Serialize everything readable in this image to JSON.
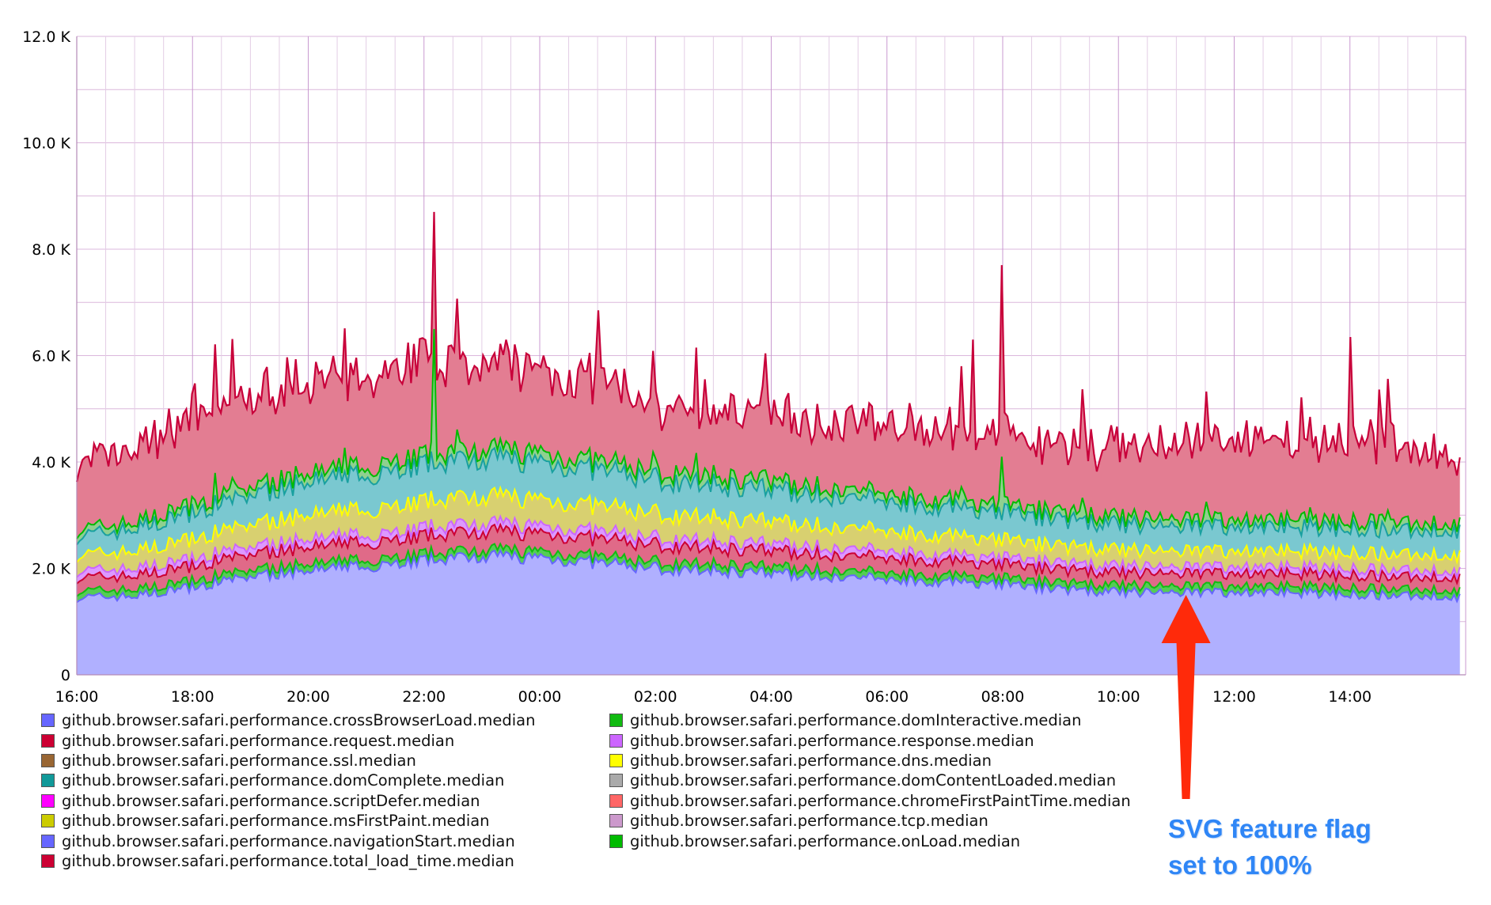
{
  "chart_data": {
    "type": "area",
    "stacked": true,
    "x_ticks": [
      "16:00",
      "18:00",
      "20:00",
      "22:00",
      "00:00",
      "02:00",
      "04:00",
      "06:00",
      "08:00",
      "10:00",
      "12:00",
      "14:00"
    ],
    "y_ticks": [
      "0",
      "2.0 K",
      "4.0 K",
      "6.0 K",
      "8.0 K",
      "10.0 K",
      "12.0 K"
    ],
    "ylim": [
      0,
      12000
    ],
    "x_range_hours": [
      16,
      39.9
    ],
    "grid": true,
    "x": [
      "16:00",
      "17:00",
      "18:00",
      "19:00",
      "20:00",
      "21:00",
      "22:00",
      "23:00",
      "00:00",
      "01:00",
      "02:00",
      "03:00",
      "04:00",
      "05:00",
      "06:00",
      "07:00",
      "08:00",
      "09:00",
      "10:00",
      "11:00",
      "12:00",
      "13:00",
      "14:00",
      "15:00",
      "15:50"
    ],
    "series": [
      {
        "name": "github.browser.safari.performance.crossBrowserLoad.median",
        "color": "#6666ff",
        "fill": "#b0b0ff",
        "values": [
          1450,
          1480,
          1650,
          1850,
          1950,
          2050,
          2150,
          2250,
          2200,
          2100,
          2000,
          1950,
          1900,
          1850,
          1800,
          1750,
          1700,
          1600,
          1550,
          1550,
          1550,
          1550,
          1500,
          1500,
          1450
        ]
      },
      {
        "name": "github.browser.safari.performance.domInteractive.median",
        "color": "#11bb11",
        "fill": "#55cc55",
        "values": [
          120,
          120,
          120,
          120,
          120,
          120,
          120,
          120,
          120,
          120,
          120,
          120,
          120,
          120,
          120,
          120,
          120,
          120,
          120,
          120,
          120,
          120,
          120,
          120,
          120
        ]
      },
      {
        "name": "github.browser.safari.performance.request.median",
        "color": "#cc0033",
        "fill": "#e06a88",
        "values": [
          250,
          260,
          280,
          300,
          320,
          330,
          340,
          350,
          340,
          330,
          320,
          310,
          300,
          290,
          280,
          270,
          260,
          250,
          240,
          240,
          240,
          240,
          240,
          240,
          240
        ]
      },
      {
        "name": "github.browser.safari.performance.response.median",
        "color": "#cc66ff",
        "fill": "#dd99ff",
        "values": [
          130,
          130,
          130,
          140,
          140,
          140,
          150,
          150,
          140,
          140,
          130,
          130,
          130,
          130,
          130,
          120,
          120,
          120,
          120,
          120,
          120,
          120,
          120,
          120,
          120
        ]
      },
      {
        "name": "github.browser.safari.performance.dns.median",
        "color": "#ffff00",
        "fill": "#d8d070",
        "values": [
          300,
          330,
          380,
          420,
          460,
          480,
          500,
          520,
          500,
          480,
          460,
          440,
          420,
          400,
          380,
          360,
          340,
          320,
          310,
          300,
          300,
          300,
          300,
          300,
          300
        ]
      },
      {
        "name": "github.browser.safari.performance.domComplete.median",
        "color": "#19a0a0",
        "fill": "#7ac8d0",
        "values": [
          350,
          420,
          500,
          560,
          620,
          660,
          700,
          720,
          700,
          680,
          650,
          620,
          600,
          580,
          560,
          540,
          520,
          500,
          480,
          470,
          460,
          460,
          460,
          460,
          460
        ]
      },
      {
        "name": "github.browser.safari.performance.onLoad.median",
        "color": "#00bb00",
        "fill": "#8fd08f",
        "values": [
          120,
          120,
          130,
          140,
          150,
          160,
          170,
          170,
          170,
          160,
          150,
          150,
          150,
          140,
          140,
          140,
          130,
          130,
          130,
          130,
          130,
          130,
          130,
          130,
          130
        ]
      },
      {
        "name": "github.browser.safari.performance.total_load_time.median",
        "color": "#c8003a",
        "fill": "#e37d92",
        "values": [
          1250,
          1350,
          1650,
          1700,
          1700,
          1600,
          1800,
          1650,
          1550,
          1450,
          1250,
          1250,
          1300,
          1250,
          1300,
          1300,
          1350,
          1200,
          1350,
          1400,
          1450,
          1450,
          1500,
          1500,
          1250
        ]
      }
    ],
    "spikes": [
      {
        "x": "22:10",
        "total_load_time": 8700,
        "onLoad": 6500
      },
      {
        "x": "08:00",
        "total_load_time": 7700,
        "onLoad": 4100
      },
      {
        "x": "14:00",
        "total_load_time": 6350
      },
      {
        "x": "01:00",
        "total_load_time": 6850
      },
      {
        "x": "07:30",
        "total_load_time": 6300
      }
    ],
    "legend": {
      "placement": "bottom",
      "left": [
        {
          "label": "github.browser.safari.performance.crossBrowserLoad.median",
          "color": "#6666ff"
        },
        {
          "label": "github.browser.safari.performance.request.median",
          "color": "#cc0033"
        },
        {
          "label": "github.browser.safari.performance.ssl.median",
          "color": "#996633"
        },
        {
          "label": "github.browser.safari.performance.domComplete.median",
          "color": "#119999"
        },
        {
          "label": "github.browser.safari.performance.scriptDefer.median",
          "color": "#ff00ff"
        },
        {
          "label": "github.browser.safari.performance.msFirstPaint.median",
          "color": "#cccc00"
        },
        {
          "label": "github.browser.safari.performance.navigationStart.median",
          "color": "#6666ff"
        },
        {
          "label": "github.browser.safari.performance.total_load_time.median",
          "color": "#cc0033"
        }
      ],
      "right": [
        {
          "label": "github.browser.safari.performance.domInteractive.median",
          "color": "#11bb11"
        },
        {
          "label": "github.browser.safari.performance.response.median",
          "color": "#cc66ff"
        },
        {
          "label": "github.browser.safari.performance.dns.median",
          "color": "#ffff00"
        },
        {
          "label": "github.browser.safari.performance.domContentLoaded.median",
          "color": "#aaaaaa"
        },
        {
          "label": "github.browser.safari.performance.chromeFirstPaintTime.median",
          "color": "#ff6666"
        },
        {
          "label": "github.browser.safari.performance.tcp.median",
          "color": "#cc99cc"
        },
        {
          "label": "github.browser.safari.performance.onLoad.median",
          "color": "#00bb00"
        }
      ]
    },
    "annotation": {
      "line1": "SVG feature flag",
      "line2": "set to 100%",
      "arrow_target_x": "11:10",
      "color": "#2f86f6",
      "arrow_color": "#ff2a0a"
    }
  }
}
